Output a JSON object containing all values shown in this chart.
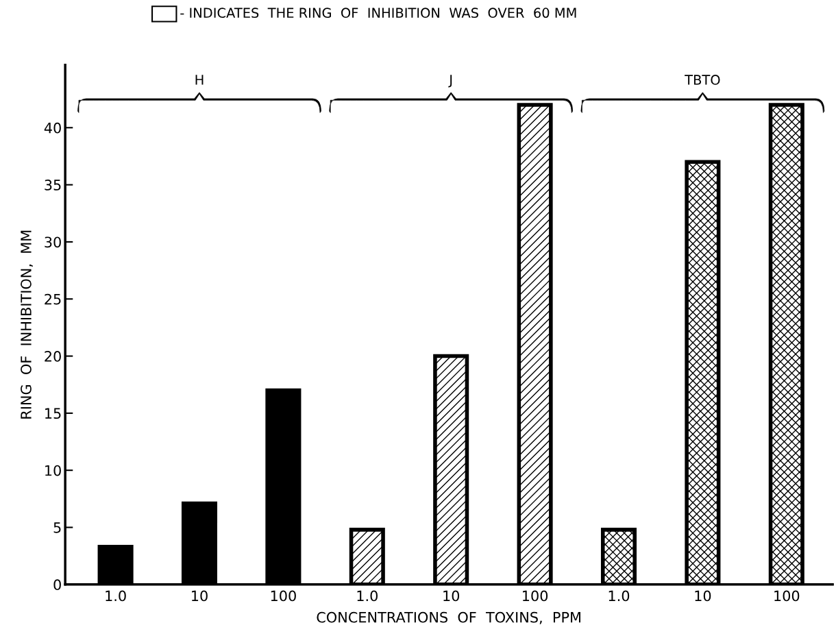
{
  "chart_data": {
    "type": "bar",
    "categories": [
      "1.0",
      "10",
      "100",
      "1.0",
      "10",
      "100",
      "1.0",
      "10",
      "100"
    ],
    "series": [
      {
        "color": "#000000",
        "values": [
          3.3,
          7.1,
          17,
          null,
          null,
          null,
          null,
          null,
          null
        ]
      },
      {
        "color": "#000000",
        "values": [
          null,
          null,
          null,
          4.8,
          20,
          42,
          null,
          null,
          null
        ]
      },
      {
        "color": "#000000",
        "values": [
          null,
          null,
          null,
          null,
          null,
          null,
          4.8,
          37,
          42
        ]
      }
    ],
    "xlabel": "CONCENTRATIONS  OF  TOXINS,  PPM",
    "ylabel": "RING  OF  INHIBITION,  MM",
    "ylim": [
      0,
      45.5
    ],
    "yticks": [
      0,
      5,
      10,
      15,
      20,
      25,
      30,
      35,
      40
    ],
    "annotations": [
      "- INDICATES  THE RING  OF  INHIBITION  WAS  OVER  60 MM",
      "H",
      "J",
      "TBTO"
    ],
    "grid": false,
    "legend": false
  }
}
